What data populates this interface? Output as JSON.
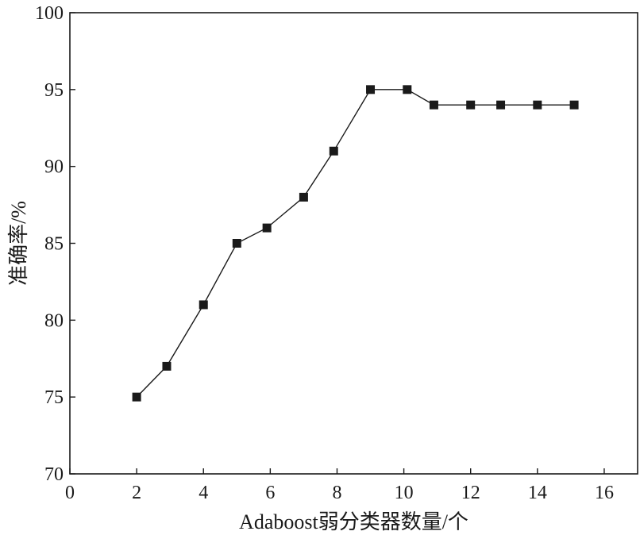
{
  "chart_data": {
    "type": "line",
    "xlabel": "Adaboost弱分类器数量/个",
    "ylabel": "准确率/%",
    "xlim": [
      0,
      17
    ],
    "ylim": [
      70,
      100
    ],
    "x_ticks": [
      0,
      2,
      4,
      6,
      8,
      10,
      12,
      14,
      16
    ],
    "y_ticks": [
      70,
      75,
      80,
      85,
      90,
      95,
      100
    ],
    "grid": false,
    "series": [
      {
        "marker": "square",
        "color": "#1a1a1a",
        "x": [
          2,
          2.9,
          4,
          5,
          5.9,
          7,
          7.9,
          9,
          10.1,
          10.9,
          12,
          12.9,
          14,
          15.1
        ],
        "y": [
          75,
          77,
          81,
          85,
          86,
          88,
          91,
          95,
          95,
          94,
          94,
          94,
          94,
          94
        ]
      }
    ]
  }
}
